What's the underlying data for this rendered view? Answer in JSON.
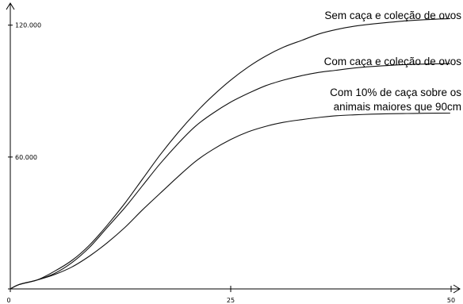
{
  "chart_data": {
    "type": "line",
    "title": "",
    "xlabel": "",
    "ylabel": "",
    "xlim": [
      0,
      50
    ],
    "ylim": [
      0,
      130000
    ],
    "grid": false,
    "legend": "none",
    "x_ticks": [
      {
        "value": 0,
        "label": "0"
      },
      {
        "value": 25,
        "label": "25"
      },
      {
        "value": 50,
        "label": "50"
      }
    ],
    "y_ticks": [
      {
        "value": 0,
        "label": "0"
      },
      {
        "value": 60000,
        "label": "60.000"
      },
      {
        "value": 120000,
        "label": "120.000"
      }
    ],
    "series": [
      {
        "name": "Sem caça e coleção de ovos",
        "color": "#111111",
        "x": [
          0,
          1,
          3,
          5,
          7,
          9,
          11,
          13,
          15,
          17,
          19,
          21,
          23,
          25,
          27,
          29,
          31,
          33,
          35,
          37,
          39,
          41,
          43,
          45,
          47,
          49.9
        ],
        "y": [
          0,
          2000,
          4000,
          8000,
          13000,
          20000,
          29000,
          39000,
          50000,
          61000,
          71000,
          80000,
          88000,
          95000,
          101000,
          106000,
          110000,
          113000,
          116000,
          118000,
          119500,
          120500,
          121300,
          122000,
          122500,
          123000
        ]
      },
      {
        "name": "Com caça e coleção de ovos",
        "color": "#111111",
        "x": [
          0,
          1,
          3,
          5,
          7,
          9,
          11,
          13,
          15,
          17,
          19,
          21,
          23,
          25,
          27,
          29,
          31,
          33,
          35,
          37,
          39,
          41,
          43,
          45,
          47,
          49.9
        ],
        "y": [
          0,
          2000,
          4000,
          7000,
          12000,
          19000,
          28000,
          37000,
          47000,
          57000,
          66000,
          74000,
          80000,
          85000,
          89000,
          92500,
          95000,
          97000,
          98500,
          99500,
          100500,
          101200,
          101700,
          102100,
          102300,
          102500
        ]
      },
      {
        "name": "Com 10% de caça sobre os animais maiores que 90cm",
        "color": "#111111",
        "x": [
          0,
          1,
          3,
          5,
          7,
          9,
          11,
          13,
          15,
          17,
          19,
          21,
          23,
          25,
          27,
          29,
          31,
          33,
          35,
          37,
          39,
          41,
          43,
          45,
          47,
          49.9
        ],
        "y": [
          0,
          2000,
          4000,
          6500,
          10000,
          15000,
          21000,
          28000,
          36000,
          43500,
          51000,
          58000,
          63500,
          68000,
          71500,
          74000,
          75800,
          77000,
          78000,
          78800,
          79200,
          79500,
          79700,
          79800,
          79900,
          80000
        ]
      }
    ],
    "labels": [
      {
        "series": 0,
        "lines": [
          "Sem caça e coleção de ovos"
        ]
      },
      {
        "series": 1,
        "lines": [
          "Com caça e coleção de ovos"
        ]
      },
      {
        "series": 2,
        "lines": [
          "Com 10% de caça sobre os",
          "animais maiores que 90cm"
        ]
      }
    ]
  }
}
